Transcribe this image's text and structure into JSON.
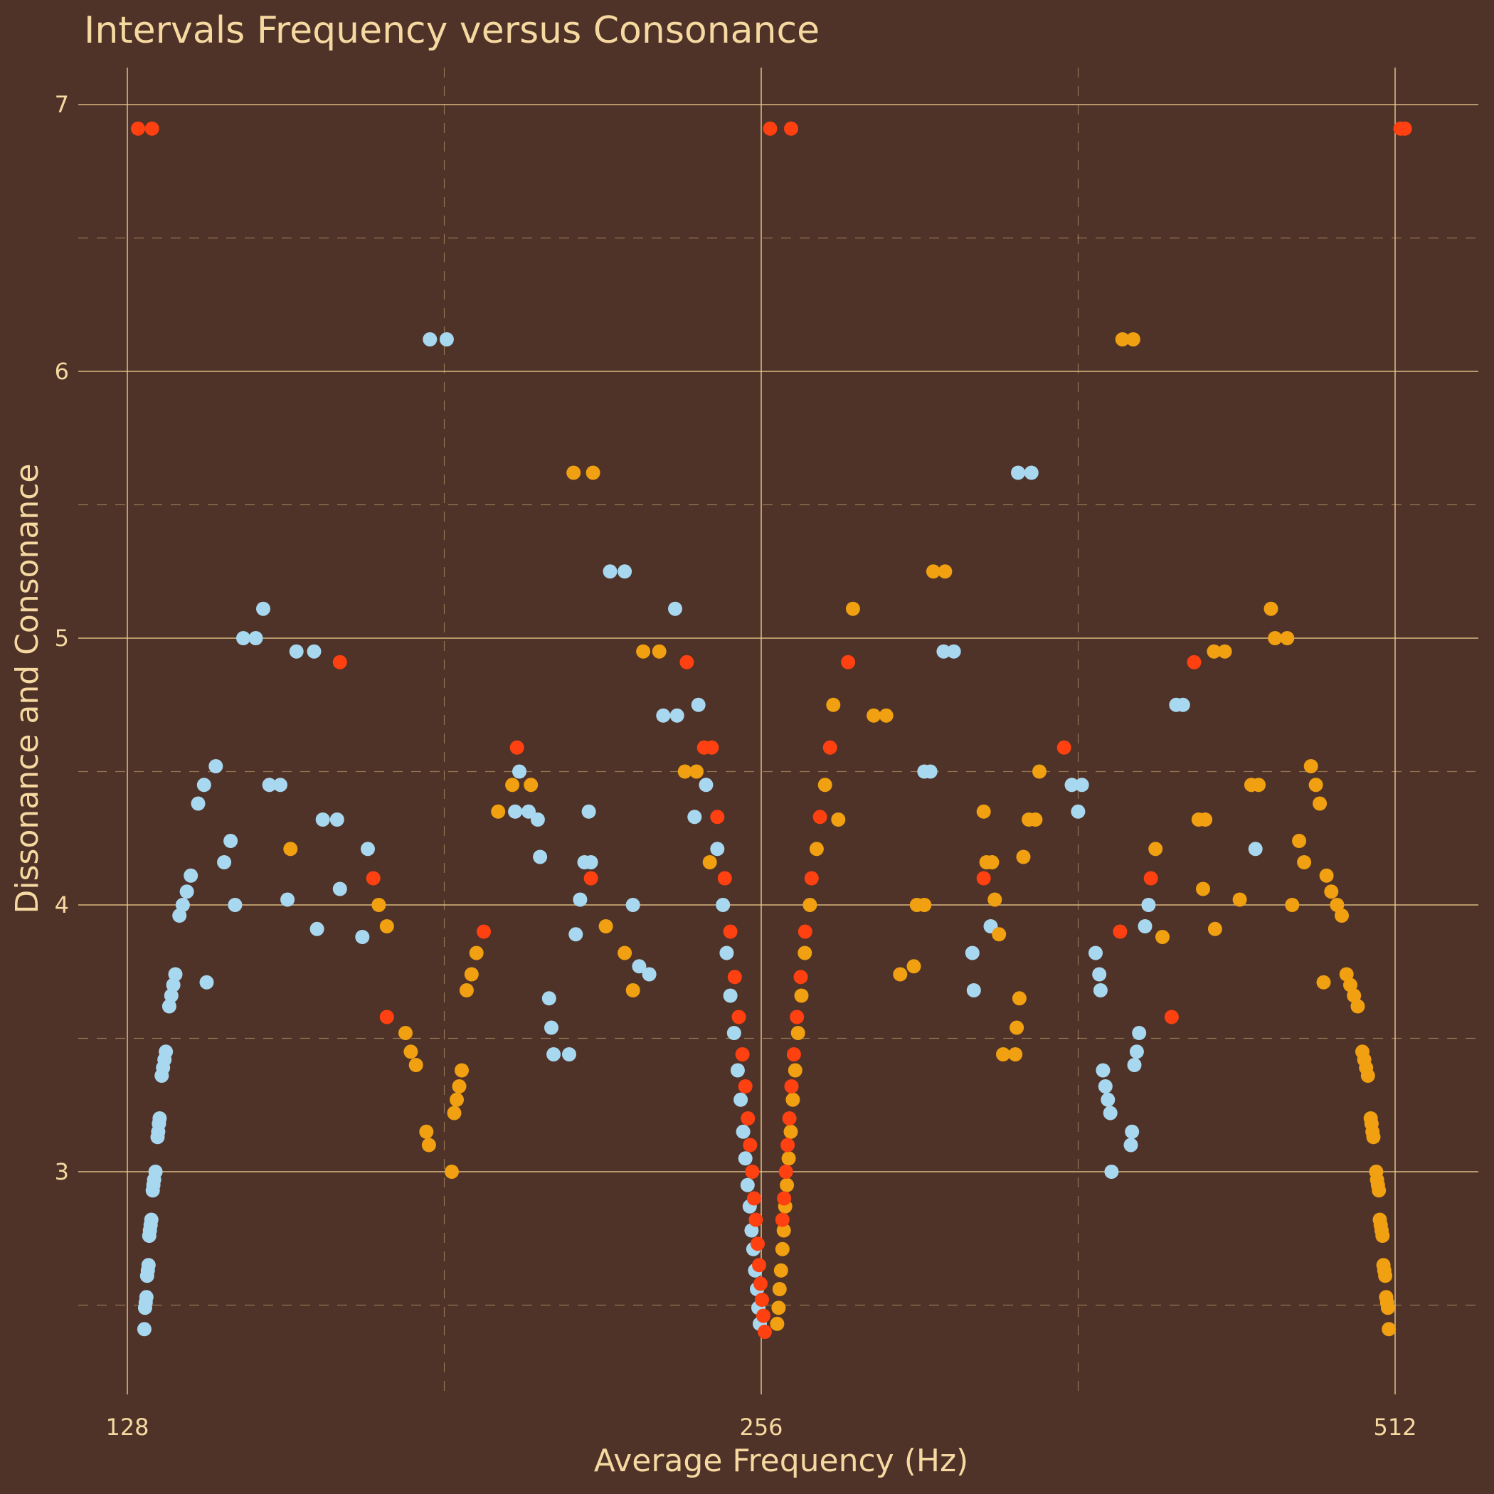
{
  "chart_data": {
    "type": "scatter",
    "title": "Intervals Frequency versus Consonance",
    "xlabel": "Average Frequency (Hz)",
    "ylabel": "Dissonance and Consonance",
    "x_scale": "log2",
    "xlim": [
      122,
      560
    ],
    "ylim": [
      2.2,
      7.15
    ],
    "x_ticks": [
      128,
      256,
      512
    ],
    "y_ticks": [
      3,
      4,
      5,
      6,
      7
    ],
    "grid": true,
    "legend": "none",
    "colors": {
      "background": "#4f3228",
      "text": "#f5d9a0",
      "grid": "#e8c98a",
      "blue": "#a8d8f0",
      "orange": "#f0a010",
      "red": "#ff4010"
    },
    "series": [
      {
        "color": "blue",
        "points": [
          [
            130.4,
            2.41
          ],
          [
            130.5,
            2.49
          ],
          [
            130.6,
            2.51
          ],
          [
            130.7,
            2.53
          ],
          [
            130.8,
            2.61
          ],
          [
            130.9,
            2.63
          ],
          [
            131.0,
            2.65
          ],
          [
            131.1,
            2.76
          ],
          [
            131.2,
            2.78
          ],
          [
            131.3,
            2.8
          ],
          [
            131.4,
            2.82
          ],
          [
            131.6,
            2.93
          ],
          [
            131.7,
            2.95
          ],
          [
            131.8,
            2.97
          ],
          [
            132.0,
            3.0
          ],
          [
            132.3,
            3.13
          ],
          [
            132.4,
            3.15
          ],
          [
            132.5,
            3.18
          ],
          [
            132.6,
            3.2
          ],
          [
            132.9,
            3.36
          ],
          [
            133.1,
            3.39
          ],
          [
            133.3,
            3.42
          ],
          [
            133.5,
            3.45
          ],
          [
            134.0,
            3.62
          ],
          [
            134.3,
            3.66
          ],
          [
            134.6,
            3.7
          ],
          [
            134.9,
            3.74
          ],
          [
            135.5,
            3.96
          ],
          [
            136.0,
            4.0
          ],
          [
            136.6,
            4.05
          ],
          [
            137.2,
            4.11
          ],
          [
            138.3,
            4.38
          ],
          [
            139.2,
            4.45
          ],
          [
            139.6,
            3.71
          ],
          [
            141.0,
            4.52
          ],
          [
            142.3,
            4.16
          ],
          [
            143.3,
            4.24
          ],
          [
            144.0,
            4.0
          ],
          [
            145.3,
            5.0
          ],
          [
            147.3,
            5.0
          ],
          [
            148.5,
            5.11
          ],
          [
            149.5,
            4.45
          ],
          [
            151.3,
            4.45
          ],
          [
            152.5,
            4.02
          ],
          [
            154.0,
            4.95
          ],
          [
            157.0,
            4.95
          ],
          [
            157.5,
            3.91
          ],
          [
            158.5,
            4.32
          ],
          [
            161.0,
            4.32
          ],
          [
            161.5,
            4.06
          ],
          [
            165.5,
            3.88
          ],
          [
            166.5,
            4.21
          ],
          [
            178.2,
            6.12
          ],
          [
            181.5,
            6.12
          ],
          [
            195.6,
            4.35
          ],
          [
            196.5,
            4.5
          ],
          [
            198.5,
            4.35
          ],
          [
            200.5,
            4.32
          ],
          [
            201.0,
            4.18
          ],
          [
            203.0,
            3.65
          ],
          [
            203.5,
            3.54
          ],
          [
            204.0,
            3.44
          ],
          [
            207.5,
            3.44
          ],
          [
            209.0,
            3.89
          ],
          [
            210.0,
            4.02
          ],
          [
            211.0,
            4.16
          ],
          [
            212.5,
            4.16
          ],
          [
            212.0,
            4.35
          ],
          [
            217.0,
            5.25
          ],
          [
            220.5,
            5.25
          ],
          [
            222.5,
            4.0
          ],
          [
            224.0,
            3.77
          ],
          [
            226.5,
            3.74
          ],
          [
            230.0,
            4.71
          ],
          [
            233.5,
            4.71
          ],
          [
            233.0,
            5.11
          ],
          [
            238.0,
            4.33
          ],
          [
            239.0,
            4.75
          ],
          [
            241.0,
            4.45
          ],
          [
            244.0,
            4.21
          ],
          [
            245.5,
            4.0
          ],
          [
            246.5,
            3.82
          ],
          [
            247.5,
            3.66
          ],
          [
            248.5,
            3.52
          ],
          [
            249.5,
            3.38
          ],
          [
            250.3,
            3.27
          ],
          [
            251.0,
            3.15
          ],
          [
            251.6,
            3.05
          ],
          [
            252.2,
            2.95
          ],
          [
            252.8,
            2.87
          ],
          [
            253.3,
            2.78
          ],
          [
            253.8,
            2.71
          ],
          [
            254.3,
            2.63
          ],
          [
            254.8,
            2.56
          ],
          [
            255.2,
            2.49
          ],
          [
            255.6,
            2.43
          ],
          [
            306.0,
            4.5
          ],
          [
            308.0,
            4.5
          ],
          [
            312.5,
            4.95
          ],
          [
            316.0,
            4.95
          ],
          [
            322.5,
            3.82
          ],
          [
            323.0,
            3.68
          ],
          [
            329.0,
            3.92
          ],
          [
            339.0,
            5.62
          ],
          [
            344.0,
            5.62
          ],
          [
            359.5,
            4.45
          ],
          [
            362.0,
            4.35
          ],
          [
            363.5,
            4.45
          ],
          [
            369.0,
            3.82
          ],
          [
            370.5,
            3.74
          ],
          [
            371.0,
            3.68
          ],
          [
            372.0,
            3.38
          ],
          [
            373.0,
            3.32
          ],
          [
            374.0,
            3.27
          ],
          [
            375.0,
            3.22
          ],
          [
            375.5,
            3.0
          ],
          [
            383.5,
            3.1
          ],
          [
            384.0,
            3.15
          ],
          [
            385.0,
            3.4
          ],
          [
            386.0,
            3.45
          ],
          [
            387.0,
            3.52
          ],
          [
            389.5,
            3.92
          ],
          [
            391.0,
            4.0
          ],
          [
            403.0,
            4.75
          ],
          [
            406.0,
            4.75
          ],
          [
            439.5,
            4.21
          ]
        ]
      },
      {
        "color": "orange",
        "points": [
          [
            153.0,
            4.21
          ],
          [
            168.5,
            4.0
          ],
          [
            170.0,
            3.92
          ],
          [
            173.5,
            3.52
          ],
          [
            174.5,
            3.45
          ],
          [
            175.5,
            3.4
          ],
          [
            177.5,
            3.15
          ],
          [
            178.0,
            3.1
          ],
          [
            182.5,
            3.0
          ],
          [
            183.0,
            3.22
          ],
          [
            183.5,
            3.27
          ],
          [
            184.0,
            3.32
          ],
          [
            184.5,
            3.38
          ],
          [
            185.5,
            3.68
          ],
          [
            186.5,
            3.74
          ],
          [
            187.5,
            3.82
          ],
          [
            192.0,
            4.35
          ],
          [
            195.0,
            4.45
          ],
          [
            199.0,
            4.45
          ],
          [
            208.5,
            5.62
          ],
          [
            213.0,
            5.62
          ],
          [
            216.0,
            3.92
          ],
          [
            220.5,
            3.82
          ],
          [
            222.5,
            3.68
          ],
          [
            225.0,
            4.95
          ],
          [
            229.0,
            4.95
          ],
          [
            235.5,
            4.5
          ],
          [
            238.5,
            4.5
          ],
          [
            242.0,
            4.16
          ],
          [
            260.5,
            2.43
          ],
          [
            260.9,
            2.49
          ],
          [
            261.2,
            2.56
          ],
          [
            261.6,
            2.63
          ],
          [
            262.0,
            2.71
          ],
          [
            262.4,
            2.78
          ],
          [
            262.8,
            2.87
          ],
          [
            263.3,
            2.95
          ],
          [
            263.8,
            3.05
          ],
          [
            264.4,
            3.15
          ],
          [
            265.0,
            3.27
          ],
          [
            265.7,
            3.38
          ],
          [
            266.5,
            3.52
          ],
          [
            267.5,
            3.66
          ],
          [
            268.5,
            3.82
          ],
          [
            270.0,
            4.0
          ],
          [
            272.0,
            4.21
          ],
          [
            274.5,
            4.45
          ],
          [
            277.0,
            4.75
          ],
          [
            278.5,
            4.32
          ],
          [
            283.0,
            5.11
          ],
          [
            289.5,
            4.71
          ],
          [
            293.5,
            4.71
          ],
          [
            298.0,
            3.74
          ],
          [
            302.5,
            3.77
          ],
          [
            303.5,
            4.0
          ],
          [
            306.0,
            4.0
          ],
          [
            309.0,
            5.25
          ],
          [
            313.0,
            5.25
          ],
          [
            326.5,
            4.35
          ],
          [
            327.5,
            4.16
          ],
          [
            329.5,
            4.16
          ],
          [
            330.5,
            4.02
          ],
          [
            332.0,
            3.89
          ],
          [
            333.5,
            3.44
          ],
          [
            338.0,
            3.44
          ],
          [
            338.5,
            3.54
          ],
          [
            339.5,
            3.65
          ],
          [
            341.0,
            4.18
          ],
          [
            343.0,
            4.32
          ],
          [
            345.5,
            4.32
          ],
          [
            347.0,
            4.5
          ],
          [
            380.0,
            6.12
          ],
          [
            384.5,
            6.12
          ],
          [
            394.0,
            4.21
          ],
          [
            397.0,
            3.88
          ],
          [
            413.0,
            4.32
          ],
          [
            416.0,
            4.32
          ],
          [
            415.0,
            4.06
          ],
          [
            420.5,
            3.91
          ],
          [
            420.0,
            4.95
          ],
          [
            425.0,
            4.95
          ],
          [
            432.0,
            4.02
          ],
          [
            437.5,
            4.45
          ],
          [
            441.0,
            4.45
          ],
          [
            447.0,
            5.11
          ],
          [
            449.0,
            5.0
          ],
          [
            455.0,
            5.0
          ],
          [
            457.5,
            4.0
          ],
          [
            461.0,
            4.24
          ],
          [
            463.5,
            4.16
          ],
          [
            467.0,
            4.52
          ],
          [
            469.5,
            4.45
          ],
          [
            471.5,
            4.38
          ],
          [
            473.5,
            3.71
          ],
          [
            475.0,
            4.11
          ],
          [
            477.5,
            4.05
          ],
          [
            480.5,
            4.0
          ],
          [
            483.0,
            3.96
          ],
          [
            485.5,
            3.74
          ],
          [
            487.5,
            3.7
          ],
          [
            489.5,
            3.66
          ],
          [
            491.5,
            3.62
          ],
          [
            494.0,
            3.45
          ],
          [
            495.0,
            3.42
          ],
          [
            496.0,
            3.39
          ],
          [
            497.0,
            3.36
          ],
          [
            498.5,
            3.2
          ],
          [
            499.0,
            3.18
          ],
          [
            499.5,
            3.15
          ],
          [
            500.0,
            3.13
          ],
          [
            501.5,
            3.0
          ],
          [
            502.0,
            2.97
          ],
          [
            502.5,
            2.95
          ],
          [
            503.0,
            2.93
          ],
          [
            503.5,
            2.82
          ],
          [
            504.0,
            2.8
          ],
          [
            504.5,
            2.78
          ],
          [
            505.0,
            2.76
          ],
          [
            505.5,
            2.65
          ],
          [
            506.0,
            2.63
          ],
          [
            506.5,
            2.61
          ],
          [
            507.0,
            2.53
          ],
          [
            507.5,
            2.51
          ],
          [
            508.0,
            2.49
          ],
          [
            508.5,
            2.41
          ]
        ]
      },
      {
        "color": "red",
        "points": [
          [
            129.5,
            6.91
          ],
          [
            131.5,
            6.91
          ],
          [
            161.5,
            4.91
          ],
          [
            167.5,
            4.1
          ],
          [
            170.0,
            3.58
          ],
          [
            189.0,
            3.9
          ],
          [
            196.0,
            4.59
          ],
          [
            212.5,
            4.1
          ],
          [
            236.0,
            4.91
          ],
          [
            240.5,
            4.59
          ],
          [
            242.5,
            4.59
          ],
          [
            244.0,
            4.33
          ],
          [
            246.0,
            4.1
          ],
          [
            247.5,
            3.9
          ],
          [
            248.7,
            3.73
          ],
          [
            249.8,
            3.58
          ],
          [
            250.8,
            3.44
          ],
          [
            251.6,
            3.32
          ],
          [
            252.3,
            3.2
          ],
          [
            252.9,
            3.1
          ],
          [
            253.5,
            3.0
          ],
          [
            254.0,
            2.9
          ],
          [
            254.5,
            2.82
          ],
          [
            255.0,
            2.73
          ],
          [
            255.4,
            2.65
          ],
          [
            255.8,
            2.58
          ],
          [
            256.2,
            2.52
          ],
          [
            256.6,
            2.46
          ],
          [
            257.0,
            2.4
          ],
          [
            258.5,
            6.91
          ],
          [
            264.5,
            6.91
          ],
          [
            262.0,
            2.82
          ],
          [
            262.5,
            2.9
          ],
          [
            263.0,
            3.0
          ],
          [
            263.5,
            3.1
          ],
          [
            264.0,
            3.2
          ],
          [
            264.6,
            3.32
          ],
          [
            265.3,
            3.44
          ],
          [
            266.2,
            3.58
          ],
          [
            267.3,
            3.73
          ],
          [
            268.6,
            3.9
          ],
          [
            270.5,
            4.1
          ],
          [
            273.0,
            4.33
          ],
          [
            276.0,
            4.59
          ],
          [
            281.5,
            4.91
          ],
          [
            326.5,
            4.1
          ],
          [
            356.5,
            4.59
          ],
          [
            379.0,
            3.9
          ],
          [
            392.0,
            4.1
          ],
          [
            401.0,
            3.58
          ],
          [
            411.0,
            4.91
          ],
          [
            515.0,
            6.91
          ],
          [
            517.5,
            6.91
          ]
        ]
      }
    ]
  }
}
